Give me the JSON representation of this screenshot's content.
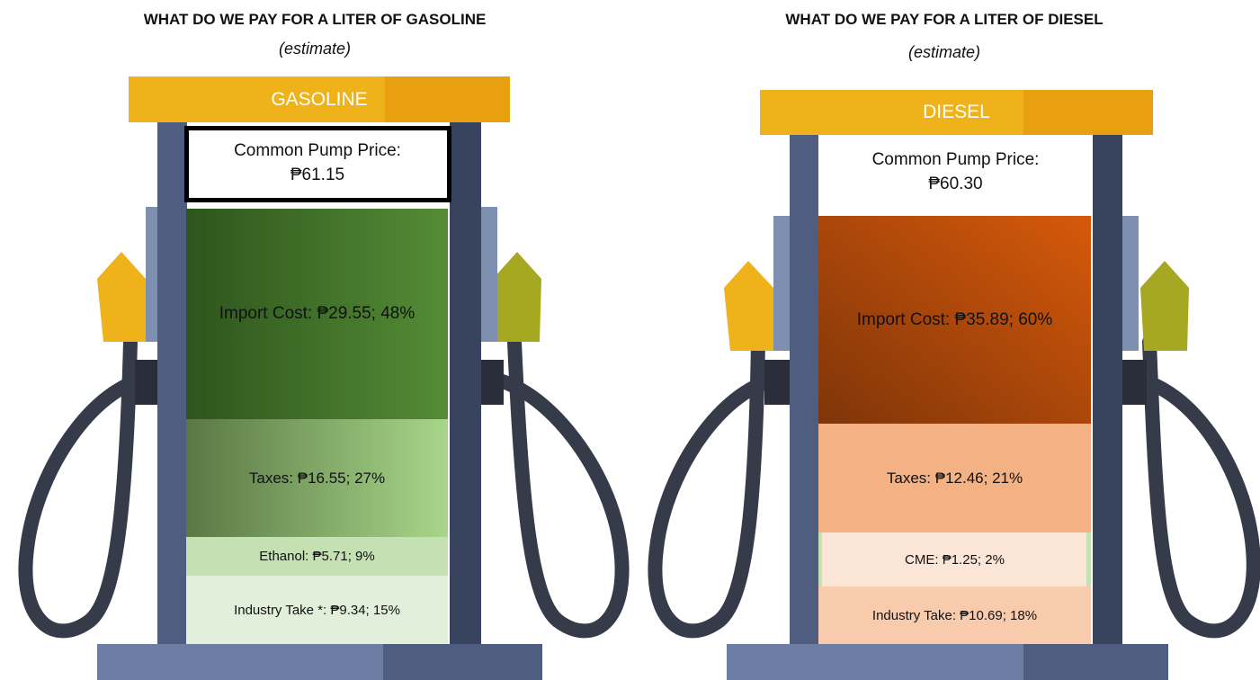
{
  "panels": [
    {
      "title": "WHAT DO WE PAY FOR A LITER OF GASOLINE",
      "subtitle": "(estimate)",
      "pump_label": "GASOLINE",
      "price_label": "Common Pump Price: ₱61.15",
      "segments": [
        {
          "label": "Import Cost: ₱29.55; 48%"
        },
        {
          "label": "Taxes: ₱16.55; 27%"
        },
        {
          "label": "Ethanol: ₱5.71; 9%"
        },
        {
          "label": "Industry Take *: ₱9.34; 15%"
        }
      ]
    },
    {
      "title": "WHAT DO WE PAY FOR A LITER OF DIESEL",
      "subtitle": "(estimate)",
      "pump_label": "DIESEL",
      "price_label": "Common Pump Price: ₱60.30",
      "segments": [
        {
          "label": "Import Cost: ₱35.89; 60%"
        },
        {
          "label": "Taxes: ₱12.46; 21%"
        },
        {
          "label": "CME: ₱1.25; 2%"
        },
        {
          "label": "Industry Take: ₱10.69; 18%"
        }
      ]
    }
  ]
}
